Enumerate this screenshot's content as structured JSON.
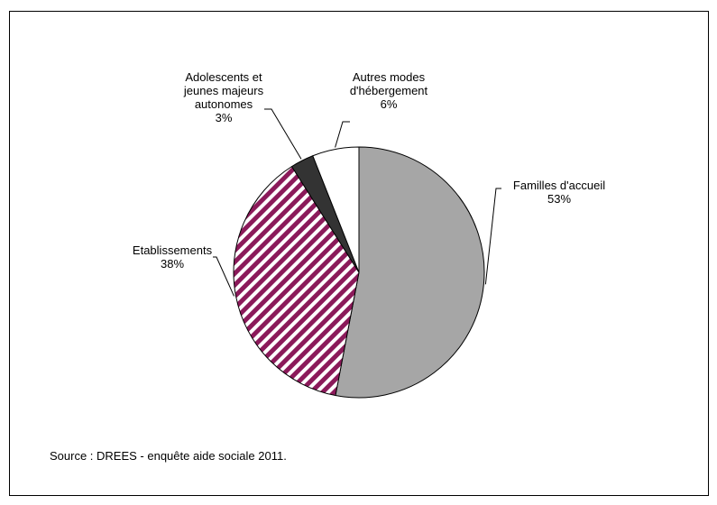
{
  "chart_data": {
    "type": "pie",
    "slices": [
      {
        "label_lines": [
          "Familles d'accueil"
        ],
        "pct_text": "53%",
        "value": 53,
        "color": "#a6a6a6",
        "pattern": "solid"
      },
      {
        "label_lines": [
          "Etablissements"
        ],
        "pct_text": "38%",
        "value": 38,
        "color": "#8b1a5a",
        "pattern": "diagonal-stripes"
      },
      {
        "label_lines": [
          "Adolescents et",
          "jeunes majeurs",
          "autonomes"
        ],
        "pct_text": "3%",
        "value": 3,
        "color": "#333333",
        "pattern": "solid"
      },
      {
        "label_lines": [
          "Autres modes",
          "d'hébergement"
        ],
        "pct_text": "6%",
        "value": 6,
        "color": "#ffffff",
        "pattern": "solid"
      }
    ],
    "start_angle": "12 o'clock",
    "direction": "clockwise",
    "legend": "none",
    "source": "Source : DREES - enquête aide sociale 2011."
  }
}
